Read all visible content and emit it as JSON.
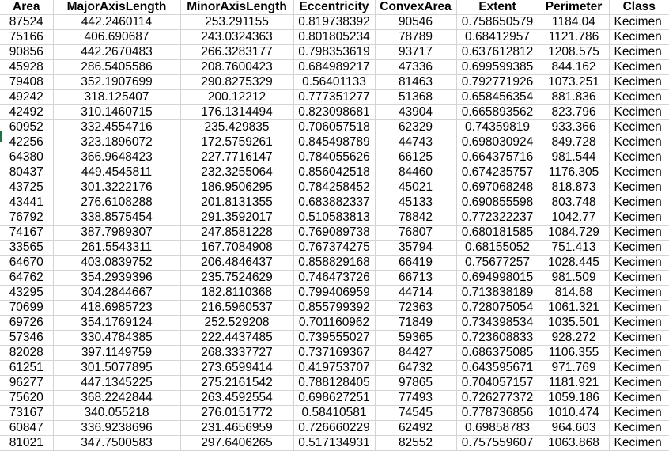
{
  "columns": [
    "Area",
    "MajorAxisLength",
    "MinorAxisLength",
    "Eccentricity",
    "ConvexArea",
    "Extent",
    "Perimeter",
    "Class"
  ],
  "rows": [
    [
      "87524",
      "442.2460114",
      "253.291155",
      "0.819738392",
      "90546",
      "0.758650579",
      "1184.04",
      "Kecimen"
    ],
    [
      "75166",
      "406.690687",
      "243.0324363",
      "0.801805234",
      "78789",
      "0.68412957",
      "1121.786",
      "Kecimen"
    ],
    [
      "90856",
      "442.2670483",
      "266.3283177",
      "0.798353619",
      "93717",
      "0.637612812",
      "1208.575",
      "Kecimen"
    ],
    [
      "45928",
      "286.5405586",
      "208.7600423",
      "0.684989217",
      "47336",
      "0.699599385",
      "844.162",
      "Kecimen"
    ],
    [
      "79408",
      "352.1907699",
      "290.8275329",
      "0.56401133",
      "81463",
      "0.792771926",
      "1073.251",
      "Kecimen"
    ],
    [
      "49242",
      "318.125407",
      "200.12212",
      "0.777351277",
      "51368",
      "0.658456354",
      "881.836",
      "Kecimen"
    ],
    [
      "42492",
      "310.1460715",
      "176.1314494",
      "0.823098681",
      "43904",
      "0.665893562",
      "823.796",
      "Kecimen"
    ],
    [
      "60952",
      "332.4554716",
      "235.429835",
      "0.706057518",
      "62329",
      "0.74359819",
      "933.366",
      "Kecimen"
    ],
    [
      "42256",
      "323.1896072",
      "172.5759261",
      "0.845498789",
      "44743",
      "0.698030924",
      "849.728",
      "Kecimen"
    ],
    [
      "64380",
      "366.9648423",
      "227.7716147",
      "0.784055626",
      "66125",
      "0.664375716",
      "981.544",
      "Kecimen"
    ],
    [
      "80437",
      "449.4545811",
      "232.3255064",
      "0.856042518",
      "84460",
      "0.674235757",
      "1176.305",
      "Kecimen"
    ],
    [
      "43725",
      "301.3222176",
      "186.9506295",
      "0.784258452",
      "45021",
      "0.697068248",
      "818.873",
      "Kecimen"
    ],
    [
      "43441",
      "276.6108288",
      "201.8131355",
      "0.683882337",
      "45133",
      "0.690855598",
      "803.748",
      "Kecimen"
    ],
    [
      "76792",
      "338.8575454",
      "291.3592017",
      "0.510583813",
      "78842",
      "0.772322237",
      "1042.77",
      "Kecimen"
    ],
    [
      "74167",
      "387.7989307",
      "247.8581228",
      "0.769089738",
      "76807",
      "0.680181585",
      "1084.729",
      "Kecimen"
    ],
    [
      "33565",
      "261.5543311",
      "167.7084908",
      "0.767374275",
      "35794",
      "0.68155052",
      "751.413",
      "Kecimen"
    ],
    [
      "64670",
      "403.0839752",
      "206.4846437",
      "0.858829168",
      "66419",
      "0.75677257",
      "1028.445",
      "Kecimen"
    ],
    [
      "64762",
      "354.2939396",
      "235.7524629",
      "0.746473726",
      "66713",
      "0.694998015",
      "981.509",
      "Kecimen"
    ],
    [
      "43295",
      "304.2844667",
      "182.8110368",
      "0.799406959",
      "44714",
      "0.713838189",
      "814.68",
      "Kecimen"
    ],
    [
      "70699",
      "418.6985723",
      "216.5960537",
      "0.855799392",
      "72363",
      "0.728075054",
      "1061.321",
      "Kecimen"
    ],
    [
      "69726",
      "354.1769124",
      "252.529208",
      "0.701160962",
      "71849",
      "0.734398534",
      "1035.501",
      "Kecimen"
    ],
    [
      "57346",
      "330.4784385",
      "222.4437485",
      "0.739555027",
      "59365",
      "0.723608833",
      "928.272",
      "Kecimen"
    ],
    [
      "82028",
      "397.1149759",
      "268.3337727",
      "0.737169367",
      "84427",
      "0.686375085",
      "1106.355",
      "Kecimen"
    ],
    [
      "61251",
      "301.5077895",
      "273.6599414",
      "0.419753707",
      "64732",
      "0.643595671",
      "971.769",
      "Kecimen"
    ],
    [
      "96277",
      "447.1345225",
      "275.2161542",
      "0.788128405",
      "97865",
      "0.704057157",
      "1181.921",
      "Kecimen"
    ],
    [
      "75620",
      "368.2242844",
      "263.4592554",
      "0.698627251",
      "77493",
      "0.726277372",
      "1059.186",
      "Kecimen"
    ],
    [
      "73167",
      "340.055218",
      "276.0151772",
      "0.58410581",
      "74545",
      "0.778736856",
      "1010.474",
      "Kecimen"
    ],
    [
      "60847",
      "336.9238696",
      "231.4656959",
      "0.726660229",
      "62492",
      "0.69858783",
      "964.603",
      "Kecimen"
    ],
    [
      "81021",
      "347.7500583",
      "297.6406265",
      "0.517134931",
      "82552",
      "0.757559607",
      "1063.868",
      "Kecimen"
    ]
  ]
}
